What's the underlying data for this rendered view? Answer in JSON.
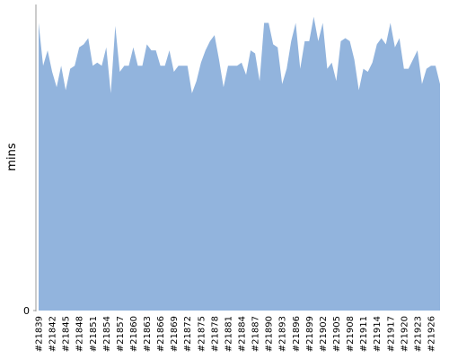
{
  "chart_data": {
    "type": "area",
    "y_label": "mins",
    "categories": [
      "#21839",
      null,
      null,
      "#21842",
      null,
      null,
      "#21845",
      null,
      null,
      "#21848",
      null,
      null,
      "#21851",
      null,
      null,
      "#21854",
      null,
      null,
      "#21857",
      null,
      null,
      "#21860",
      null,
      null,
      "#21863",
      null,
      null,
      "#21866",
      null,
      null,
      "#21869",
      null,
      null,
      "#21872",
      null,
      null,
      "#21875",
      null,
      null,
      "#21878",
      null,
      null,
      "#21881",
      null,
      null,
      "#21884",
      null,
      null,
      "#21887",
      null,
      null,
      "#21890",
      null,
      null,
      "#21893",
      null,
      null,
      "#21896",
      null,
      null,
      "#21899",
      null,
      null,
      "#21902",
      null,
      null,
      "#21905",
      null,
      null,
      "#21908",
      null,
      null,
      "#21911",
      null,
      null,
      "#21914",
      null,
      null,
      "#21917",
      null,
      null,
      "#21920",
      null,
      null,
      "#21923",
      null,
      null,
      "#21926",
      null,
      null
    ],
    "values": [
      94,
      80,
      85,
      78,
      73,
      80,
      72,
      79,
      80,
      86,
      87,
      89,
      80,
      81,
      80,
      86,
      71,
      93,
      78,
      80,
      80,
      86,
      80,
      80,
      87,
      85,
      85,
      80,
      80,
      85,
      78,
      80,
      80,
      80,
      71,
      75,
      81,
      85,
      88,
      90,
      82,
      73,
      80,
      80,
      80,
      81,
      77,
      85,
      84,
      75,
      94,
      94,
      87,
      86,
      74,
      79,
      88,
      94,
      79,
      88,
      88,
      96,
      88,
      94,
      79,
      81,
      75,
      88,
      89,
      88,
      82,
      72,
      79,
      78,
      81,
      87,
      89,
      87,
      94,
      86,
      89,
      79,
      79,
      82,
      85,
      74,
      79,
      80,
      80,
      74
    ],
    "color": "#92b4dd",
    "ylim": [
      0,
      100
    ],
    "yticks": [
      0
    ]
  }
}
